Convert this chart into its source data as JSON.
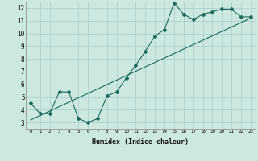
{
  "xlabel": "Humidex (Indice chaleur)",
  "ylabel": "",
  "bg_color": "#cce8e0",
  "line_color": "#1a6b5a",
  "grid_color": "#aacccc",
  "x_data": [
    0,
    1,
    2,
    3,
    4,
    5,
    6,
    7,
    8,
    9,
    10,
    11,
    12,
    13,
    14,
    15,
    16,
    17,
    18,
    19,
    20,
    21,
    22,
    23
  ],
  "y_data": [
    4.5,
    3.7,
    3.7,
    5.4,
    5.4,
    3.3,
    3.0,
    3.3,
    5.1,
    5.4,
    6.5,
    7.5,
    8.6,
    9.8,
    10.3,
    12.4,
    11.5,
    11.1,
    11.5,
    11.7,
    11.9,
    11.9,
    11.3,
    11.3
  ],
  "trend_x": [
    0,
    23
  ],
  "trend_y": [
    3.2,
    11.2
  ],
  "xlim": [
    -0.5,
    23.5
  ],
  "ylim": [
    2.5,
    12.5
  ],
  "xticks": [
    0,
    1,
    2,
    3,
    4,
    5,
    6,
    7,
    8,
    9,
    10,
    11,
    12,
    13,
    14,
    15,
    16,
    17,
    18,
    19,
    20,
    21,
    22,
    23
  ],
  "yticks": [
    3,
    4,
    5,
    6,
    7,
    8,
    9,
    10,
    11,
    12
  ]
}
